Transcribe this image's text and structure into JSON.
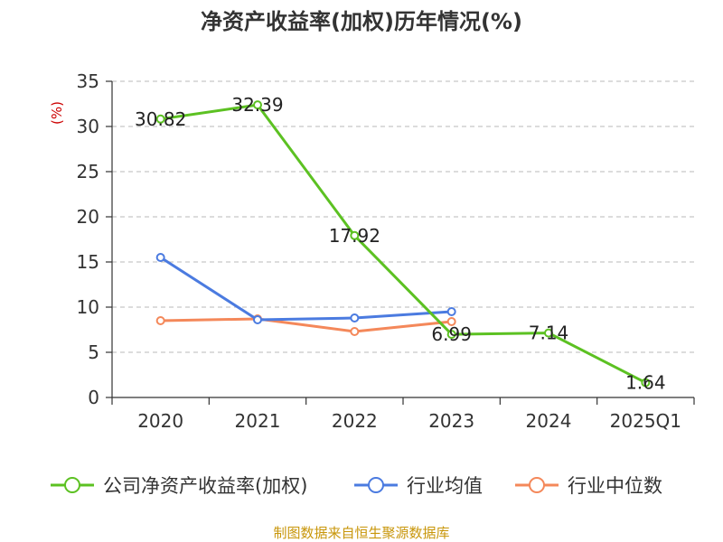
{
  "chart_data": {
    "type": "line",
    "title": "净资产收益率(加权)历年情况(%)",
    "ylabel": "(%)",
    "categories": [
      "2020",
      "2021",
      "2022",
      "2023",
      "2024",
      "2025Q1"
    ],
    "ylim": [
      0,
      35
    ],
    "yticks": [
      0,
      5,
      10,
      15,
      20,
      25,
      30,
      35
    ],
    "grid": "horizontal dashed",
    "legend_position": "bottom",
    "series": [
      {
        "name": "公司净资产收益率(加权)",
        "color": "#5cc122",
        "values": [
          30.82,
          32.39,
          17.92,
          6.99,
          7.14,
          1.64
        ],
        "labels": [
          "30.82",
          "32.39",
          "17.92",
          "6.99",
          "7.14",
          "1.64"
        ]
      },
      {
        "name": "行业均值",
        "color": "#4b7be0",
        "values": [
          15.5,
          8.6,
          8.8,
          9.5,
          null,
          null
        ]
      },
      {
        "name": "行业中位数",
        "color": "#f4885a",
        "values": [
          8.5,
          8.7,
          7.3,
          8.4,
          null,
          null
        ]
      }
    ]
  },
  "source": "制图数据来自恒生聚源数据库"
}
